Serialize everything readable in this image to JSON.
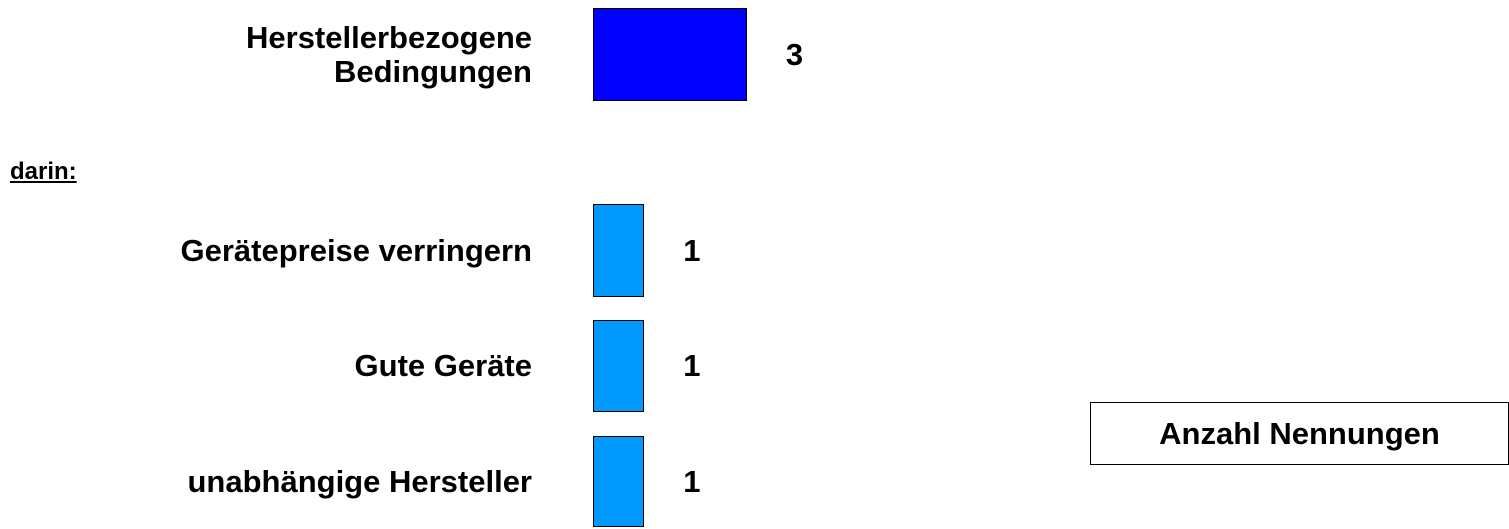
{
  "section_label": "darin:",
  "legend_label": "Anzahl Nennungen",
  "colors": {
    "total_bar": "#0000ff",
    "sub_bar": "#0099ff"
  },
  "chart_data": {
    "type": "bar",
    "orientation": "horizontal",
    "categories": [
      "Herstellerbezogene Bedingungen",
      "Gerätepreise verringern",
      "Gute Geräte",
      "unabhängige Hersteller"
    ],
    "label_lines": [
      [
        "Herstellerbezogene",
        "Bedingungen"
      ],
      [
        "Gerätepreise verringern"
      ],
      [
        "Gute Geräte"
      ],
      [
        "unabhängige Hersteller"
      ]
    ],
    "values": [
      3,
      1,
      1,
      1
    ],
    "series": [
      {
        "name": "Anzahl Nennungen",
        "values": [
          3,
          1,
          1,
          1
        ]
      }
    ],
    "xlim": [
      0,
      3
    ],
    "grid": false,
    "legend_position": "bottom-right",
    "data_labels": true
  }
}
